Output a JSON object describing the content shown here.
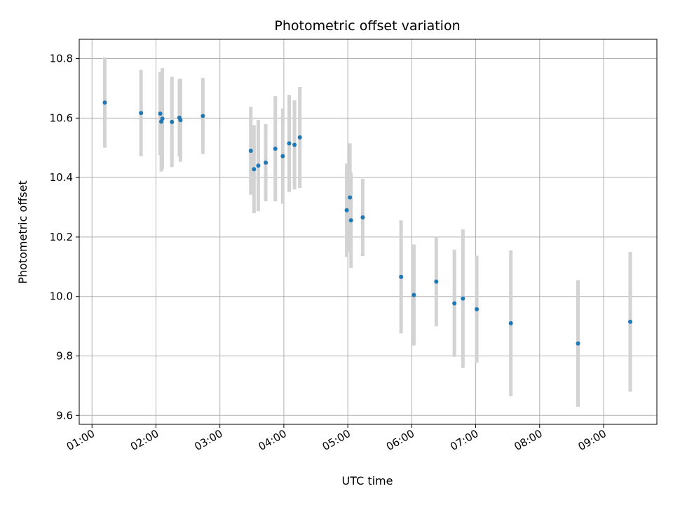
{
  "chart_data": {
    "type": "scatter",
    "title": "Photometric offset variation",
    "xlabel": "UTC time",
    "ylabel": "Photometric offset",
    "x_ticks": [
      "01:00",
      "02:00",
      "03:00",
      "04:00",
      "05:00",
      "06:00",
      "07:00",
      "08:00",
      "09:00"
    ],
    "x_tick_hours": [
      1,
      2,
      3,
      4,
      5,
      6,
      7,
      8,
      9
    ],
    "y_ticks": [
      "9.6",
      "9.8",
      "10.0",
      "10.2",
      "10.4",
      "10.6",
      "10.8"
    ],
    "y_tick_values": [
      9.6,
      9.8,
      10.0,
      10.2,
      10.4,
      10.6,
      10.8
    ],
    "xlim": [
      "00:48",
      "09:50"
    ],
    "ylim": [
      9.57,
      10.865
    ],
    "grid": true,
    "colors": {
      "point": "#1f77b4",
      "errorbar": "#d3d3d3",
      "grid": "#b0b0b0"
    },
    "points": [
      {
        "t": "01:12",
        "y": 10.652,
        "err": 0.152
      },
      {
        "t": "01:46",
        "y": 10.617,
        "err": 0.145
      },
      {
        "t": "02:04",
        "y": 10.615,
        "err": 0.14
      },
      {
        "t": "02:05",
        "y": 10.588,
        "err": 0.168
      },
      {
        "t": "02:06",
        "y": 10.598,
        "err": 0.17
      },
      {
        "t": "02:15",
        "y": 10.587,
        "err": 0.152
      },
      {
        "t": "02:22",
        "y": 10.601,
        "err": 0.13
      },
      {
        "t": "02:23",
        "y": 10.593,
        "err": 0.14
      },
      {
        "t": "02:44",
        "y": 10.607,
        "err": 0.128
      },
      {
        "t": "03:29",
        "y": 10.49,
        "err": 0.148
      },
      {
        "t": "03:32",
        "y": 10.428,
        "err": 0.148
      },
      {
        "t": "03:36",
        "y": 10.44,
        "err": 0.153
      },
      {
        "t": "03:43",
        "y": 10.45,
        "err": 0.13
      },
      {
        "t": "03:52",
        "y": 10.497,
        "err": 0.177
      },
      {
        "t": "03:59",
        "y": 10.472,
        "err": 0.16
      },
      {
        "t": "04:05",
        "y": 10.515,
        "err": 0.163
      },
      {
        "t": "04:10",
        "y": 10.51,
        "err": 0.15
      },
      {
        "t": "04:15",
        "y": 10.535,
        "err": 0.17
      },
      {
        "t": "04:59",
        "y": 10.29,
        "err": 0.157
      },
      {
        "t": "05:02",
        "y": 10.333,
        "err": 0.182
      },
      {
        "t": "05:03",
        "y": 10.256,
        "err": 0.16
      },
      {
        "t": "05:14",
        "y": 10.266,
        "err": 0.13
      },
      {
        "t": "05:50",
        "y": 10.066,
        "err": 0.19
      },
      {
        "t": "06:02",
        "y": 10.005,
        "err": 0.17
      },
      {
        "t": "06:23",
        "y": 10.05,
        "err": 0.15
      },
      {
        "t": "06:40",
        "y": 9.977,
        "err": 0.18
      },
      {
        "t": "06:48",
        "y": 9.993,
        "err": 0.233
      },
      {
        "t": "07:01",
        "y": 9.957,
        "err": 0.18
      },
      {
        "t": "07:33",
        "y": 9.91,
        "err": 0.245
      },
      {
        "t": "08:36",
        "y": 9.842,
        "err": 0.213
      },
      {
        "t": "09:25",
        "y": 9.915,
        "err": 0.235
      }
    ]
  }
}
